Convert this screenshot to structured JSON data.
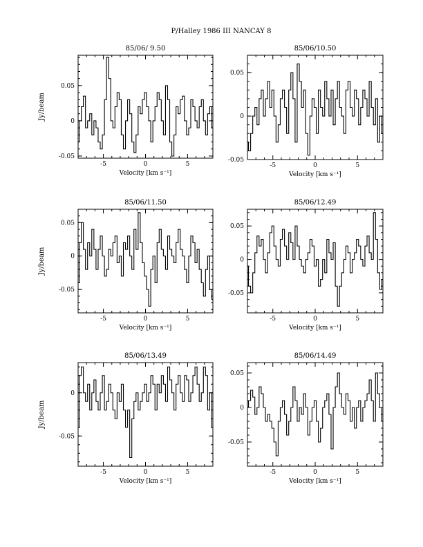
{
  "figure": {
    "title": "P/Halley 1986 III    NANCAY      8"
  },
  "chart_data": [
    {
      "type": "line",
      "title": "85/06/ 9.50",
      "xlabel": "Velocity [km s⁻¹]",
      "ylabel": "Jy/beam",
      "xlim": [
        -8,
        8
      ],
      "ylim": [
        -0.053,
        0.093
      ],
      "xticks": [
        -5,
        0,
        5
      ],
      "yticks": [
        -0.05,
        0,
        0.05
      ],
      "ytick_labels": [
        "-0.05",
        "0",
        "0.05"
      ],
      "xtick_labels": [
        "-5",
        "0",
        "5"
      ],
      "series": [
        {
          "x": [
            -8.0,
            -7.75,
            -7.5,
            -7.25,
            -7.0,
            -6.75,
            -6.5,
            -6.25,
            -6.0,
            -5.75,
            -5.5,
            -5.25,
            -5.0,
            -4.75,
            -4.5,
            -4.25,
            -4.0,
            -3.75,
            -3.5,
            -3.25,
            -3.0,
            -2.75,
            -2.5,
            -2.25,
            -2.0,
            -1.75,
            -1.5,
            -1.25,
            -1.0,
            -0.75,
            -0.5,
            -0.25,
            0.0,
            0.25,
            0.5,
            0.75,
            1.0,
            1.25,
            1.5,
            1.75,
            2.0,
            2.25,
            2.5,
            2.75,
            3.0,
            3.25,
            3.5,
            3.75,
            4.0,
            4.25,
            4.5,
            4.75,
            5.0,
            5.25,
            5.5,
            5.75,
            6.0,
            6.25,
            6.5,
            6.75,
            7.0,
            7.25,
            7.5,
            7.75,
            8.0
          ],
          "values": [
            -0.03,
            0.0,
            0.02,
            0.035,
            -0.01,
            0.0,
            0.01,
            -0.02,
            0.0,
            -0.01,
            -0.03,
            -0.04,
            -0.02,
            0.03,
            0.09,
            0.06,
            0.0,
            -0.01,
            0.02,
            0.04,
            0.03,
            -0.02,
            -0.04,
            0.0,
            0.03,
            0.01,
            -0.03,
            -0.045,
            -0.02,
            0.02,
            0.01,
            0.03,
            0.04,
            0.02,
            0.0,
            -0.03,
            0.0,
            0.02,
            0.04,
            0.03,
            0.0,
            -0.02,
            0.05,
            0.03,
            -0.03,
            -0.05,
            -0.02,
            0.02,
            0.01,
            0.03,
            0.035,
            0.0,
            -0.02,
            -0.01,
            0.03,
            0.02,
            0.0,
            -0.01,
            0.02,
            0.03,
            0.0,
            -0.02,
            0.01,
            0.02,
            -0.01
          ]
        }
      ]
    },
    {
      "type": "line",
      "title": "85/06/10.50",
      "xlabel": "Velocity [km s⁻¹]",
      "ylabel": "",
      "xlim": [
        -8,
        8
      ],
      "ylim": [
        -0.05,
        0.07
      ],
      "xticks": [
        -5,
        0,
        5
      ],
      "yticks": [
        -0.05,
        0,
        0.05
      ],
      "ytick_labels": [
        "-0.05",
        "0",
        "0.05"
      ],
      "xtick_labels": [
        "-5",
        "0",
        "5"
      ],
      "series": [
        {
          "x": [
            -8.0,
            -7.75,
            -7.5,
            -7.25,
            -7.0,
            -6.75,
            -6.5,
            -6.25,
            -6.0,
            -5.75,
            -5.5,
            -5.25,
            -5.0,
            -4.75,
            -4.5,
            -4.25,
            -4.0,
            -3.75,
            -3.5,
            -3.25,
            -3.0,
            -2.75,
            -2.5,
            -2.25,
            -2.0,
            -1.75,
            -1.5,
            -1.25,
            -1.0,
            -0.75,
            -0.5,
            -0.25,
            0.0,
            0.25,
            0.5,
            0.75,
            1.0,
            1.25,
            1.5,
            1.75,
            2.0,
            2.25,
            2.5,
            2.75,
            3.0,
            3.25,
            3.5,
            3.75,
            4.0,
            4.25,
            4.5,
            4.75,
            5.0,
            5.25,
            5.5,
            5.75,
            6.0,
            6.25,
            6.5,
            6.75,
            7.0,
            7.25,
            7.5,
            7.75,
            8.0
          ],
          "values": [
            -0.03,
            -0.04,
            -0.02,
            0.0,
            0.01,
            -0.01,
            0.02,
            0.03,
            0.0,
            0.02,
            0.04,
            0.01,
            0.03,
            0.0,
            -0.03,
            -0.01,
            0.02,
            0.03,
            0.01,
            -0.02,
            0.03,
            0.05,
            0.02,
            -0.03,
            0.06,
            0.04,
            0.01,
            0.03,
            -0.02,
            -0.045,
            0.0,
            0.02,
            0.01,
            -0.02,
            0.03,
            0.01,
            0.0,
            0.04,
            0.02,
            0.0,
            0.03,
            -0.01,
            0.02,
            0.04,
            0.01,
            0.0,
            -0.02,
            0.03,
            0.04,
            0.01,
            0.0,
            0.03,
            0.02,
            -0.01,
            0.01,
            0.03,
            0.02,
            0.0,
            0.04,
            0.01,
            -0.01,
            0.02,
            -0.03,
            0.0,
            -0.02
          ]
        }
      ]
    },
    {
      "type": "line",
      "title": "85/06/11.50",
      "xlabel": "Velocity [km s⁻¹]",
      "ylabel": "Jy/beam",
      "xlim": [
        -8,
        8
      ],
      "ylim": [
        -0.085,
        0.07
      ],
      "xticks": [
        -5,
        0,
        5
      ],
      "yticks": [
        -0.05,
        0,
        0.05
      ],
      "ytick_labels": [
        "-0.05",
        "0",
        "0.05"
      ],
      "xtick_labels": [
        "-5",
        "0",
        "5"
      ],
      "series": [
        {
          "x": [
            -8.0,
            -7.75,
            -7.5,
            -7.25,
            -7.0,
            -6.75,
            -6.5,
            -6.25,
            -6.0,
            -5.75,
            -5.5,
            -5.25,
            -5.0,
            -4.75,
            -4.5,
            -4.25,
            -4.0,
            -3.75,
            -3.5,
            -3.25,
            -3.0,
            -2.75,
            -2.5,
            -2.25,
            -2.0,
            -1.75,
            -1.5,
            -1.25,
            -1.0,
            -0.75,
            -0.5,
            -0.25,
            0.0,
            0.25,
            0.5,
            0.75,
            1.0,
            1.25,
            1.5,
            1.75,
            2.0,
            2.25,
            2.5,
            2.75,
            3.0,
            3.25,
            3.5,
            3.75,
            4.0,
            4.25,
            4.5,
            4.75,
            5.0,
            5.25,
            5.5,
            5.75,
            6.0,
            6.25,
            6.5,
            6.75,
            7.0,
            7.25,
            7.5,
            7.75,
            8.0
          ],
          "values": [
            -0.04,
            0.02,
            0.05,
            0.01,
            -0.02,
            0.02,
            0.0,
            0.04,
            0.01,
            -0.02,
            0.01,
            0.03,
            0.0,
            -0.03,
            -0.02,
            0.01,
            0.0,
            0.02,
            0.03,
            -0.01,
            0.0,
            -0.03,
            0.02,
            0.01,
            0.03,
            0.0,
            -0.02,
            0.04,
            0.01,
            0.065,
            0.02,
            -0.01,
            -0.03,
            -0.05,
            -0.075,
            -0.02,
            0.0,
            -0.04,
            0.02,
            0.04,
            0.01,
            0.0,
            -0.02,
            0.03,
            0.01,
            0.0,
            -0.01,
            0.02,
            0.04,
            0.01,
            0.0,
            -0.02,
            -0.04,
            0.0,
            0.03,
            0.02,
            -0.01,
            0.01,
            -0.02,
            -0.04,
            -0.06,
            -0.02,
            0.0,
            -0.05,
            -0.065
          ]
        }
      ]
    },
    {
      "type": "line",
      "title": "85/06/12.49",
      "xlabel": "Velocity [km s⁻¹]",
      "ylabel": "",
      "xlim": [
        -8,
        8
      ],
      "ylim": [
        -0.08,
        0.075
      ],
      "xticks": [
        -5,
        0,
        5
      ],
      "yticks": [
        -0.05,
        0,
        0.05
      ],
      "ytick_labels": [
        "-0.05",
        "0",
        "0.05"
      ],
      "xtick_labels": [
        "-5",
        "0",
        "5"
      ],
      "series": [
        {
          "x": [
            -8.0,
            -7.75,
            -7.5,
            -7.25,
            -7.0,
            -6.75,
            -6.5,
            -6.25,
            -6.0,
            -5.75,
            -5.5,
            -5.25,
            -5.0,
            -4.75,
            -4.5,
            -4.25,
            -4.0,
            -3.75,
            -3.5,
            -3.25,
            -3.0,
            -2.75,
            -2.5,
            -2.25,
            -2.0,
            -1.75,
            -1.5,
            -1.25,
            -1.0,
            -0.75,
            -0.5,
            -0.25,
            0.0,
            0.25,
            0.5,
            0.75,
            1.0,
            1.25,
            1.5,
            1.75,
            2.0,
            2.25,
            2.5,
            2.75,
            3.0,
            3.25,
            3.5,
            3.75,
            4.0,
            4.25,
            4.5,
            4.75,
            5.0,
            5.25,
            5.5,
            5.75,
            6.0,
            6.25,
            6.5,
            6.75,
            7.0,
            7.25,
            7.5,
            7.75,
            8.0
          ],
          "values": [
            -0.01,
            -0.04,
            -0.05,
            -0.02,
            0.01,
            0.035,
            0.02,
            0.03,
            0.0,
            -0.02,
            0.01,
            0.04,
            0.05,
            0.02,
            0.0,
            -0.01,
            0.03,
            0.045,
            0.02,
            0.0,
            0.04,
            0.025,
            0.0,
            0.05,
            0.02,
            0.0,
            -0.01,
            -0.02,
            0.0,
            0.01,
            0.03,
            0.02,
            -0.01,
            0.0,
            -0.04,
            -0.03,
            0.0,
            -0.02,
            0.03,
            0.01,
            0.0,
            0.025,
            -0.04,
            -0.07,
            -0.04,
            -0.02,
            0.0,
            0.02,
            0.01,
            -0.02,
            0.0,
            0.01,
            0.03,
            0.02,
            0.0,
            -0.01,
            0.02,
            0.035,
            0.01,
            0.0,
            0.07,
            0.03,
            -0.02,
            -0.045,
            -0.03
          ]
        }
      ]
    },
    {
      "type": "line",
      "title": "85/06/13.49",
      "xlabel": "Velocity [km s⁻¹]",
      "ylabel": "Jy/beam",
      "xlim": [
        -8,
        8
      ],
      "ylim": [
        -0.085,
        0.035
      ],
      "xticks": [
        -5,
        0,
        5
      ],
      "yticks": [
        -0.05,
        0
      ],
      "ytick_labels": [
        "-0.05",
        "0"
      ],
      "xtick_labels": [
        "-5",
        "0",
        "5"
      ],
      "series": [
        {
          "x": [
            -8.0,
            -7.75,
            -7.5,
            -7.25,
            -7.0,
            -6.75,
            -6.5,
            -6.25,
            -6.0,
            -5.75,
            -5.5,
            -5.25,
            -5.0,
            -4.75,
            -4.5,
            -4.25,
            -4.0,
            -3.75,
            -3.5,
            -3.25,
            -3.0,
            -2.75,
            -2.5,
            -2.25,
            -2.0,
            -1.75,
            -1.5,
            -1.25,
            -1.0,
            -0.75,
            -0.5,
            -0.25,
            0.0,
            0.25,
            0.5,
            0.75,
            1.0,
            1.25,
            1.5,
            1.75,
            2.0,
            2.25,
            2.5,
            2.75,
            3.0,
            3.25,
            3.5,
            3.75,
            4.0,
            4.25,
            4.5,
            4.75,
            5.0,
            5.25,
            5.5,
            5.75,
            6.0,
            6.25,
            6.5,
            6.75,
            7.0,
            7.25,
            7.5,
            7.75,
            8.0
          ],
          "values": [
            -0.04,
            0.02,
            0.03,
            0.0,
            -0.01,
            0.01,
            -0.02,
            0.0,
            0.015,
            -0.01,
            -0.02,
            0.0,
            0.02,
            -0.02,
            -0.01,
            0.01,
            0.0,
            -0.02,
            -0.03,
            0.0,
            -0.01,
            0.01,
            -0.02,
            -0.04,
            -0.02,
            -0.075,
            -0.03,
            -0.01,
            0.0,
            -0.02,
            -0.01,
            0.0,
            0.01,
            -0.01,
            0.0,
            0.02,
            0.01,
            -0.02,
            0.01,
            0.0,
            0.02,
            0.01,
            -0.01,
            0.03,
            0.015,
            0.0,
            -0.02,
            0.01,
            0.02,
            0.0,
            -0.01,
            0.02,
            0.015,
            -0.01,
            0.0,
            0.02,
            0.03,
            0.01,
            -0.01,
            0.0,
            0.03,
            0.02,
            -0.02,
            0.0,
            -0.04
          ]
        }
      ]
    },
    {
      "type": "line",
      "title": "85/06/14.49",
      "xlabel": "Velocity [km s⁻¹]",
      "ylabel": "",
      "xlim": [
        -8,
        8
      ],
      "ylim": [
        -0.085,
        0.065
      ],
      "xticks": [
        -5,
        0,
        5
      ],
      "yticks": [
        -0.05,
        0,
        0.05
      ],
      "ytick_labels": [
        "-0.05",
        "0",
        "0.05"
      ],
      "xtick_labels": [
        "-5",
        "0",
        "5"
      ],
      "series": [
        {
          "x": [
            -8.0,
            -7.75,
            -7.5,
            -7.25,
            -7.0,
            -6.75,
            -6.5,
            -6.25,
            -6.0,
            -5.75,
            -5.5,
            -5.25,
            -5.0,
            -4.75,
            -4.5,
            -4.25,
            -4.0,
            -3.75,
            -3.5,
            -3.25,
            -3.0,
            -2.75,
            -2.5,
            -2.25,
            -2.0,
            -1.75,
            -1.5,
            -1.25,
            -1.0,
            -0.75,
            -0.5,
            -0.25,
            0.0,
            0.25,
            0.5,
            0.75,
            1.0,
            1.25,
            1.5,
            1.75,
            2.0,
            2.25,
            2.5,
            2.75,
            3.0,
            3.25,
            3.5,
            3.75,
            4.0,
            4.25,
            4.5,
            4.75,
            5.0,
            5.25,
            5.5,
            5.75,
            6.0,
            6.25,
            6.5,
            6.75,
            7.0,
            7.25,
            7.5,
            7.75,
            8.0
          ],
          "values": [
            0.0,
            0.01,
            0.025,
            0.015,
            -0.01,
            0.0,
            0.03,
            0.02,
            0.0,
            -0.02,
            -0.01,
            -0.02,
            -0.03,
            -0.05,
            -0.07,
            -0.02,
            0.0,
            0.01,
            -0.01,
            -0.04,
            -0.02,
            0.0,
            0.03,
            0.01,
            -0.02,
            0.0,
            -0.01,
            0.02,
            0.0,
            -0.04,
            -0.02,
            0.0,
            0.01,
            -0.02,
            -0.05,
            -0.03,
            0.0,
            0.01,
            0.02,
            -0.01,
            -0.06,
            0.0,
            0.03,
            0.05,
            0.02,
            0.0,
            -0.01,
            0.02,
            0.01,
            -0.02,
            0.0,
            -0.03,
            0.0,
            0.01,
            -0.02,
            0.0,
            0.01,
            0.02,
            0.04,
            0.01,
            -0.02,
            0.05,
            0.02,
            0.0,
            -0.02
          ]
        }
      ]
    }
  ]
}
